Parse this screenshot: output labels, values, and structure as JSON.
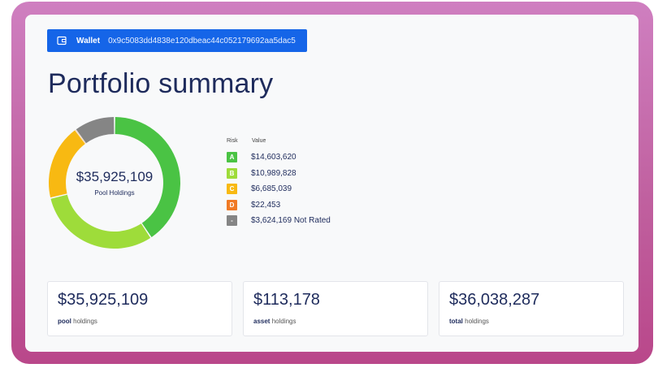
{
  "wallet": {
    "label": "Wallet",
    "address": "0x9c5083dd4838e120dbeac44c052179692aa5dac5"
  },
  "page_title": "Portfolio summary",
  "donut": {
    "center_value": "$35,925,109",
    "center_label": "Pool Holdings",
    "segments": [
      {
        "risk": "A",
        "value": 14603620,
        "color": "#4ac344"
      },
      {
        "risk": "B",
        "value": 10989828,
        "color": "#9edc3a"
      },
      {
        "risk": "C",
        "value": 6685039,
        "color": "#f8b912"
      },
      {
        "risk": "D",
        "value": 22453,
        "color": "#f07a25"
      },
      {
        "risk": "-",
        "value": 3624169,
        "color": "#858585"
      }
    ]
  },
  "legend": {
    "header_risk": "Risk",
    "header_value": "Value",
    "items": [
      {
        "badge": "A",
        "value": "$14,603,620",
        "color": "#4ac344"
      },
      {
        "badge": "B",
        "value": "$10,989,828",
        "color": "#9edc3a"
      },
      {
        "badge": "C",
        "value": "$6,685,039",
        "color": "#f8b912"
      },
      {
        "badge": "D",
        "value": "$22,453",
        "color": "#f07a25"
      },
      {
        "badge": "-",
        "value": "$3,624,169 Not Rated",
        "color": "#858585"
      }
    ]
  },
  "stats": [
    {
      "amount": "$35,925,109",
      "bold": "pool",
      "rest": " holdings"
    },
    {
      "amount": "$113,178",
      "bold": "asset",
      "rest": " holdings"
    },
    {
      "amount": "$36,038,287",
      "bold": "total",
      "rest": " holdings"
    }
  ],
  "colors": {
    "frame": "#c0609f",
    "accent_blue": "#1565e8",
    "title_navy": "#1e2b5c"
  }
}
